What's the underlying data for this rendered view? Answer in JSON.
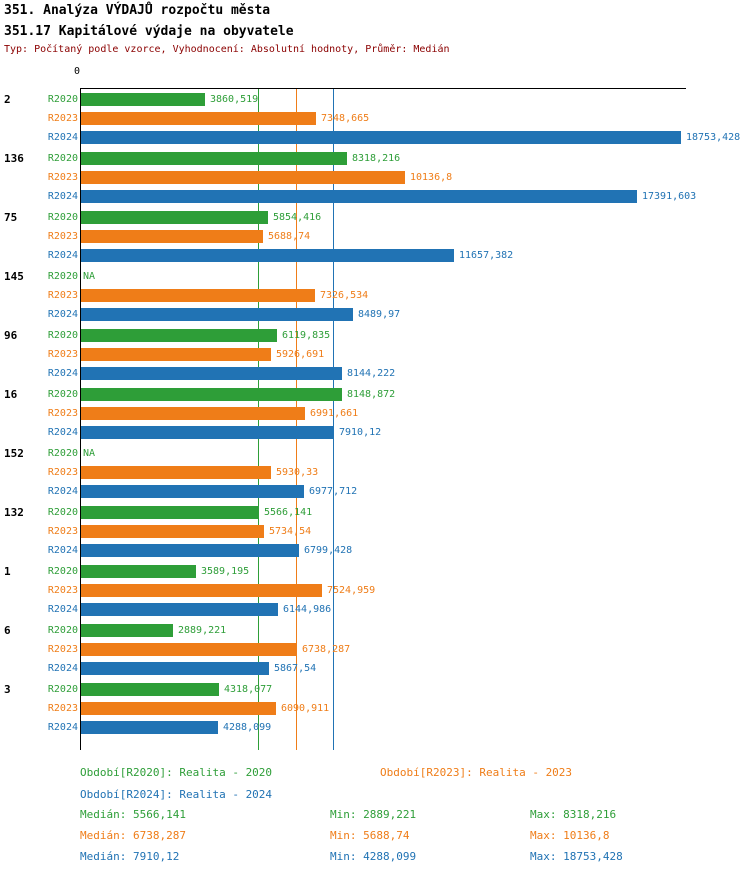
{
  "header": {
    "title1": "351. Analýza VÝDAJŮ rozpočtu města",
    "title2": "351.17 Kapitálové výdaje na obyvatele",
    "subtitle": "Typ: Počítaný podle vzorce, Vyhodnocení: Absolutní hodnoty, Průměr: Medián"
  },
  "colors": {
    "series": [
      "#2e9e38",
      "#ef7d18",
      "#2173b4"
    ],
    "subtitle": "#8b0000",
    "axis": "#000000"
  },
  "chart_data": {
    "type": "bar",
    "orientation": "horizontal",
    "axis_origin_label": "0",
    "xmax": 18753.428,
    "xlim": [
      0,
      18900
    ],
    "series_labels": [
      "R2020",
      "R2023",
      "R2024"
    ],
    "median_lines": [
      {
        "series": "R2020",
        "value": 5566.141
      },
      {
        "series": "R2023",
        "value": 6738.287
      },
      {
        "series": "R2024",
        "value": 7910.12
      }
    ],
    "groups": [
      {
        "label": "2",
        "bars": [
          {
            "series": "R2020",
            "value": 3860.519,
            "display": "3860,519"
          },
          {
            "series": "R2023",
            "value": 7348.665,
            "display": "7348,665"
          },
          {
            "series": "R2024",
            "value": 18753.428,
            "display": "18753,428"
          }
        ]
      },
      {
        "label": "136",
        "bars": [
          {
            "series": "R2020",
            "value": 8318.216,
            "display": "8318,216"
          },
          {
            "series": "R2023",
            "value": 10136.8,
            "display": "10136,8"
          },
          {
            "series": "R2024",
            "value": 17391.603,
            "display": "17391,603"
          }
        ]
      },
      {
        "label": "75",
        "bars": [
          {
            "series": "R2020",
            "value": 5854.416,
            "display": "5854,416"
          },
          {
            "series": "R2023",
            "value": 5688.74,
            "display": "5688,74"
          },
          {
            "series": "R2024",
            "value": 11657.382,
            "display": "11657,382"
          }
        ]
      },
      {
        "label": "145",
        "bars": [
          {
            "series": "R2020",
            "value": null,
            "display": "NA"
          },
          {
            "series": "R2023",
            "value": 7326.534,
            "display": "7326,534"
          },
          {
            "series": "R2024",
            "value": 8489.97,
            "display": "8489,97"
          }
        ]
      },
      {
        "label": "96",
        "bars": [
          {
            "series": "R2020",
            "value": 6119.835,
            "display": "6119,835"
          },
          {
            "series": "R2023",
            "value": 5926.691,
            "display": "5926,691"
          },
          {
            "series": "R2024",
            "value": 8144.222,
            "display": "8144,222"
          }
        ]
      },
      {
        "label": "16",
        "bars": [
          {
            "series": "R2020",
            "value": 8148.872,
            "display": "8148,872"
          },
          {
            "series": "R2023",
            "value": 6991.661,
            "display": "6991,661"
          },
          {
            "series": "R2024",
            "value": 7910.12,
            "display": "7910,12"
          }
        ]
      },
      {
        "label": "152",
        "bars": [
          {
            "series": "R2020",
            "value": null,
            "display": "NA"
          },
          {
            "series": "R2023",
            "value": 5930.33,
            "display": "5930,33"
          },
          {
            "series": "R2024",
            "value": 6977.712,
            "display": "6977,712"
          }
        ]
      },
      {
        "label": "132",
        "bars": [
          {
            "series": "R2020",
            "value": 5566.141,
            "display": "5566,141"
          },
          {
            "series": "R2023",
            "value": 5734.54,
            "display": "5734,54"
          },
          {
            "series": "R2024",
            "value": 6799.428,
            "display": "6799,428"
          }
        ]
      },
      {
        "label": "1",
        "bars": [
          {
            "series": "R2020",
            "value": 3589.195,
            "display": "3589,195"
          },
          {
            "series": "R2023",
            "value": 7524.959,
            "display": "7524,959"
          },
          {
            "series": "R2024",
            "value": 6144.986,
            "display": "6144,986"
          }
        ]
      },
      {
        "label": "6",
        "bars": [
          {
            "series": "R2020",
            "value": 2889.221,
            "display": "2889,221"
          },
          {
            "series": "R2023",
            "value": 6738.287,
            "display": "6738,287"
          },
          {
            "series": "R2024",
            "value": 5867.54,
            "display": "5867,54"
          }
        ]
      },
      {
        "label": "3",
        "bars": [
          {
            "series": "R2020",
            "value": 4318.077,
            "display": "4318,077"
          },
          {
            "series": "R2023",
            "value": 6090.911,
            "display": "6090,911"
          },
          {
            "series": "R2024",
            "value": 4288.099,
            "display": "4288,099"
          }
        ]
      }
    ]
  },
  "legend": {
    "items": [
      {
        "series": "R2020",
        "label": "Období[R2020]: Realita - 2020"
      },
      {
        "series": "R2023",
        "label": "Období[R2023]: Realita - 2023"
      },
      {
        "series": "R2024",
        "label": "Období[R2024]: Realita - 2024"
      }
    ]
  },
  "stats": {
    "rows": [
      {
        "series": "R2020",
        "median": "Medián: 5566,141",
        "min": "Min: 2889,221",
        "max": "Max: 8318,216"
      },
      {
        "series": "R2023",
        "median": "Medián: 6738,287",
        "min": "Min: 5688,74",
        "max": "Max: 10136,8"
      },
      {
        "series": "R2024",
        "median": "Medián: 7910,12",
        "min": "Min: 4288,099",
        "max": "Max: 18753,428"
      }
    ]
  }
}
